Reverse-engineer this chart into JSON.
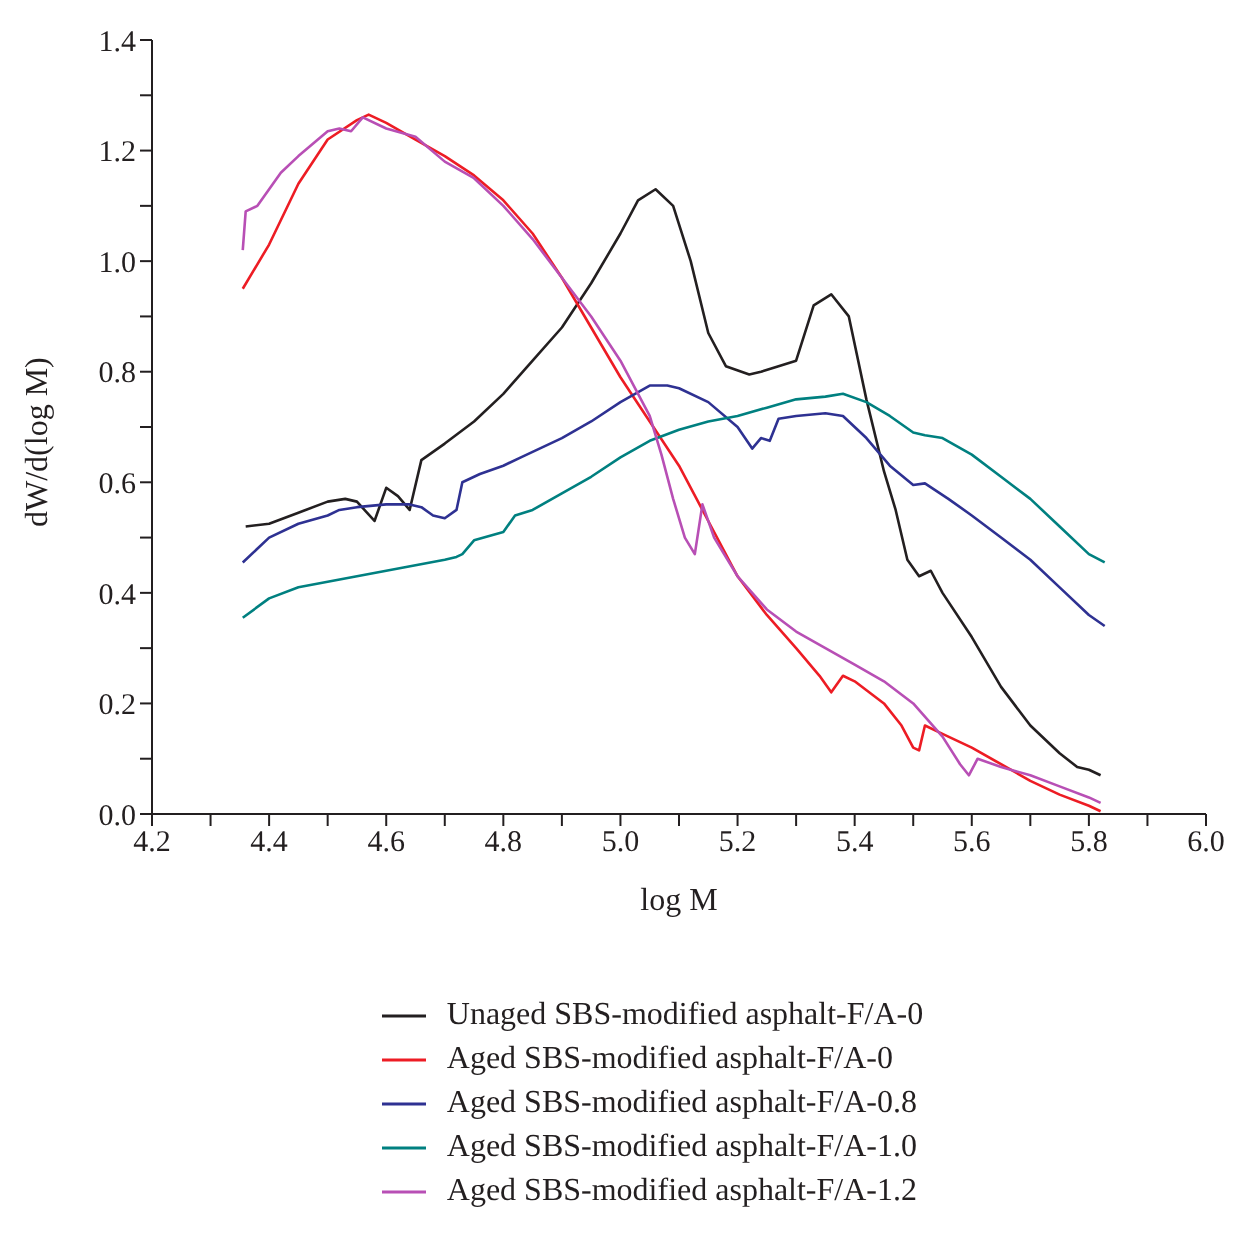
{
  "chart_data": {
    "type": "line",
    "xlabel": "log M",
    "ylabel": "dW/d(log M)",
    "xlim": [
      4.2,
      6.0
    ],
    "ylim": [
      0,
      1.4
    ],
    "xticks": [
      4.2,
      {
        "value": 4.3,
        "label": null
      },
      4.4,
      {
        "value": 4.5,
        "label": null
      },
      4.6,
      {
        "value": 4.7,
        "label": null
      },
      4.8,
      {
        "value": 4.9,
        "label": null
      },
      {
        "value": 5.0,
        "label": "5.0"
      },
      {
        "value": 5.1,
        "label": null
      },
      5.2,
      {
        "value": 5.3,
        "label": null
      },
      5.4,
      {
        "value": 5.5,
        "label": null
      },
      5.6,
      {
        "value": 5.7,
        "label": null
      },
      5.8,
      {
        "value": 5.9,
        "label": null
      },
      {
        "value": 6.0,
        "label": "6.0"
      }
    ],
    "yticks": [
      {
        "value": 0,
        "label": "0.0"
      },
      {
        "value": 0.1,
        "label": null
      },
      0.2,
      {
        "value": 0.3,
        "label": null
      },
      0.4,
      {
        "value": 0.5,
        "label": null
      },
      0.6,
      {
        "value": 0.7,
        "label": null
      },
      0.8,
      {
        "value": 0.9,
        "label": null
      },
      {
        "value": 1.0,
        "label": "1.0"
      },
      {
        "value": 1.1,
        "label": null
      },
      1.2,
      {
        "value": 1.3,
        "label": null
      },
      1.4
    ],
    "grid": false,
    "legend": "bottom",
    "marker": "none",
    "line_style": "solid",
    "series": [
      {
        "name": "Unaged SBS-modified asphalt-F/A-0",
        "color": "#231f20",
        "x": [
          4.36,
          4.4,
          4.45,
          4.5,
          4.53,
          4.55,
          4.58,
          4.6,
          4.62,
          4.64,
          4.66,
          4.7,
          4.75,
          4.8,
          4.85,
          4.9,
          4.95,
          5.0,
          5.03,
          5.06,
          5.09,
          5.12,
          5.15,
          5.18,
          5.22,
          5.24,
          5.27,
          5.3,
          5.33,
          5.36,
          5.39,
          5.42,
          5.45,
          5.47,
          5.49,
          5.51,
          5.53,
          5.55,
          5.6,
          5.65,
          5.7,
          5.75,
          5.78,
          5.8,
          5.82
        ],
        "values": [
          0.52,
          0.525,
          0.545,
          0.565,
          0.57,
          0.565,
          0.53,
          0.59,
          0.575,
          0.55,
          0.64,
          0.67,
          0.71,
          0.76,
          0.82,
          0.88,
          0.96,
          1.05,
          1.11,
          1.13,
          1.1,
          1.0,
          0.87,
          0.81,
          0.795,
          0.8,
          0.81,
          0.82,
          0.92,
          0.94,
          0.9,
          0.75,
          0.62,
          0.55,
          0.46,
          0.43,
          0.44,
          0.4,
          0.32,
          0.23,
          0.16,
          0.11,
          0.085,
          0.08,
          0.07
        ]
      },
      {
        "name": "Aged SBS-modified asphalt-F/A-0",
        "color": "#ed1c24",
        "x": [
          4.355,
          4.4,
          4.45,
          4.5,
          4.55,
          4.57,
          4.6,
          4.65,
          4.7,
          4.75,
          4.8,
          4.85,
          4.9,
          4.95,
          5.0,
          5.05,
          5.1,
          5.15,
          5.2,
          5.25,
          5.3,
          5.34,
          5.36,
          5.38,
          5.4,
          5.45,
          5.48,
          5.5,
          5.51,
          5.52,
          5.55,
          5.6,
          5.65,
          5.7,
          5.75,
          5.8,
          5.82
        ],
        "values": [
          0.95,
          1.03,
          1.14,
          1.22,
          1.255,
          1.265,
          1.25,
          1.22,
          1.19,
          1.155,
          1.11,
          1.05,
          0.97,
          0.88,
          0.79,
          0.71,
          0.63,
          0.53,
          0.43,
          0.36,
          0.3,
          0.25,
          0.22,
          0.25,
          0.24,
          0.2,
          0.16,
          0.12,
          0.115,
          0.16,
          0.145,
          0.12,
          0.09,
          0.06,
          0.035,
          0.015,
          0.005
        ]
      },
      {
        "name": "Aged SBS-modified asphalt-F/A-0.8",
        "color": "#2e3192",
        "x": [
          4.355,
          4.4,
          4.45,
          4.5,
          4.52,
          4.55,
          4.6,
          4.64,
          4.66,
          4.68,
          4.7,
          4.72,
          4.73,
          4.76,
          4.8,
          4.83,
          4.86,
          4.9,
          4.95,
          5.0,
          5.05,
          5.08,
          5.1,
          5.15,
          5.2,
          5.225,
          5.24,
          5.255,
          5.27,
          5.3,
          5.35,
          5.38,
          5.42,
          5.46,
          5.5,
          5.52,
          5.56,
          5.6,
          5.65,
          5.7,
          5.75,
          5.8,
          5.827
        ],
        "values": [
          0.455,
          0.5,
          0.525,
          0.54,
          0.55,
          0.555,
          0.56,
          0.56,
          0.555,
          0.54,
          0.535,
          0.55,
          0.6,
          0.615,
          0.63,
          0.645,
          0.66,
          0.68,
          0.71,
          0.745,
          0.775,
          0.775,
          0.77,
          0.745,
          0.7,
          0.661,
          0.68,
          0.675,
          0.715,
          0.72,
          0.725,
          0.72,
          0.68,
          0.63,
          0.595,
          0.598,
          0.57,
          0.54,
          0.5,
          0.46,
          0.41,
          0.36,
          0.34
        ]
      },
      {
        "name": "Aged SBS-modified asphalt-F/A-1.0",
        "color": "#008080",
        "x": [
          4.355,
          4.4,
          4.45,
          4.5,
          4.55,
          4.6,
          4.65,
          4.7,
          4.72,
          4.73,
          4.75,
          4.8,
          4.82,
          4.85,
          4.9,
          4.95,
          5.0,
          5.05,
          5.1,
          5.15,
          5.2,
          5.25,
          5.3,
          5.35,
          5.38,
          5.42,
          5.46,
          5.5,
          5.52,
          5.55,
          5.6,
          5.65,
          5.7,
          5.75,
          5.8,
          5.827
        ],
        "values": [
          0.355,
          0.39,
          0.41,
          0.42,
          0.43,
          0.44,
          0.45,
          0.46,
          0.465,
          0.47,
          0.495,
          0.51,
          0.54,
          0.55,
          0.58,
          0.61,
          0.645,
          0.675,
          0.695,
          0.71,
          0.72,
          0.735,
          0.75,
          0.755,
          0.76,
          0.745,
          0.72,
          0.69,
          0.685,
          0.68,
          0.65,
          0.61,
          0.57,
          0.52,
          0.47,
          0.455
        ]
      },
      {
        "name": "Aged SBS-modified asphalt-F/A-1.2",
        "color": "#b84fb5",
        "x": [
          4.355,
          4.36,
          4.38,
          4.4,
          4.42,
          4.45,
          4.5,
          4.52,
          4.54,
          4.56,
          4.6,
          4.65,
          4.7,
          4.75,
          4.8,
          4.85,
          4.9,
          4.95,
          5.0,
          5.05,
          5.07,
          5.09,
          5.11,
          5.127,
          5.14,
          5.16,
          5.2,
          5.25,
          5.3,
          5.35,
          5.4,
          5.45,
          5.5,
          5.55,
          5.58,
          5.595,
          5.61,
          5.65,
          5.7,
          5.75,
          5.8,
          5.82
        ],
        "values": [
          1.02,
          1.09,
          1.1,
          1.13,
          1.16,
          1.19,
          1.235,
          1.24,
          1.235,
          1.26,
          1.24,
          1.225,
          1.18,
          1.15,
          1.1,
          1.04,
          0.97,
          0.9,
          0.82,
          0.72,
          0.65,
          0.57,
          0.5,
          0.47,
          0.56,
          0.5,
          0.43,
          0.37,
          0.33,
          0.3,
          0.27,
          0.24,
          0.2,
          0.14,
          0.09,
          0.07,
          0.1,
          0.085,
          0.07,
          0.05,
          0.03,
          0.02
        ]
      }
    ]
  }
}
